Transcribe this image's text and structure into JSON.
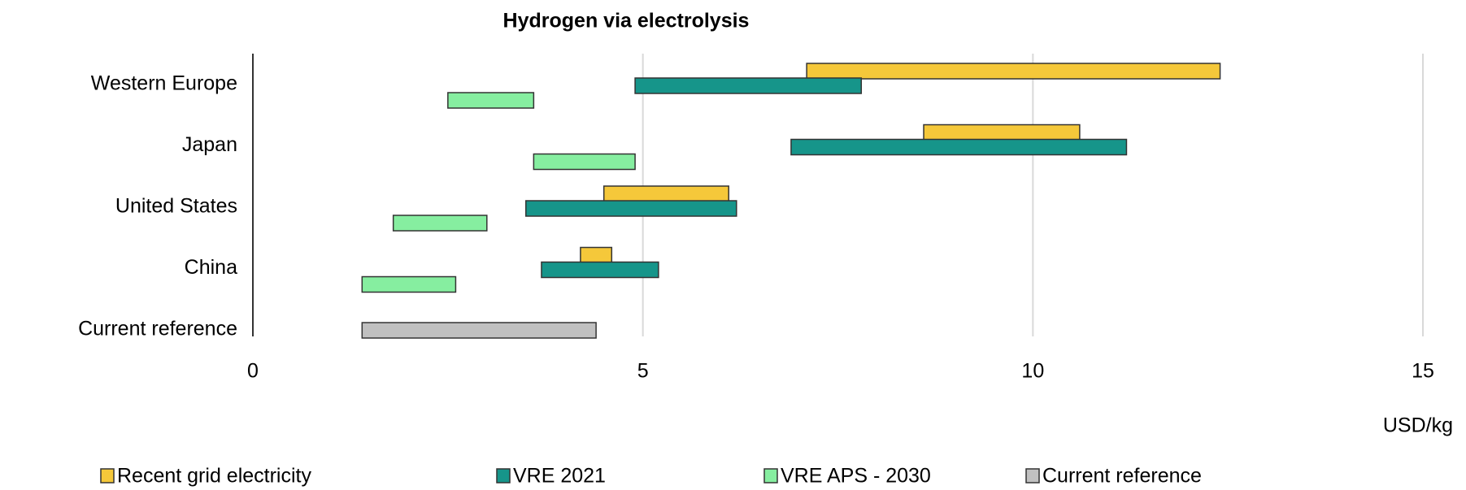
{
  "chart_data": {
    "type": "floating-bar",
    "orientation": "horizontal",
    "title": "Hydrogen via electrolysis",
    "xlabel": "USD/kg",
    "categories": [
      "Western Europe",
      "Japan",
      "United States",
      "China",
      "Current reference"
    ],
    "series": [
      {
        "name": "Recent grid electricity",
        "color": "#f5c83a",
        "values": [
          [
            7.1,
            12.4
          ],
          [
            8.6,
            10.6
          ],
          [
            4.5,
            6.1
          ],
          [
            4.2,
            4.6
          ],
          null
        ]
      },
      {
        "name": "VRE 2021",
        "color": "#16958a",
        "values": [
          [
            4.9,
            7.8
          ],
          [
            6.9,
            11.2
          ],
          [
            3.5,
            6.2
          ],
          [
            3.7,
            5.2
          ],
          null
        ]
      },
      {
        "name": "VRE APS - 2030",
        "color": "#86eea0",
        "values": [
          [
            2.5,
            3.6
          ],
          [
            3.6,
            4.9
          ],
          [
            1.8,
            3.0
          ],
          [
            1.4,
            2.6
          ],
          null
        ]
      },
      {
        "name": "Current reference",
        "color": "#c0c0c0",
        "values": [
          null,
          null,
          null,
          null,
          [
            1.4,
            4.4
          ]
        ]
      }
    ],
    "xlim": [
      0,
      15
    ],
    "xticks": [
      0,
      5,
      10,
      15
    ],
    "grid": true,
    "legend": "bottom"
  }
}
